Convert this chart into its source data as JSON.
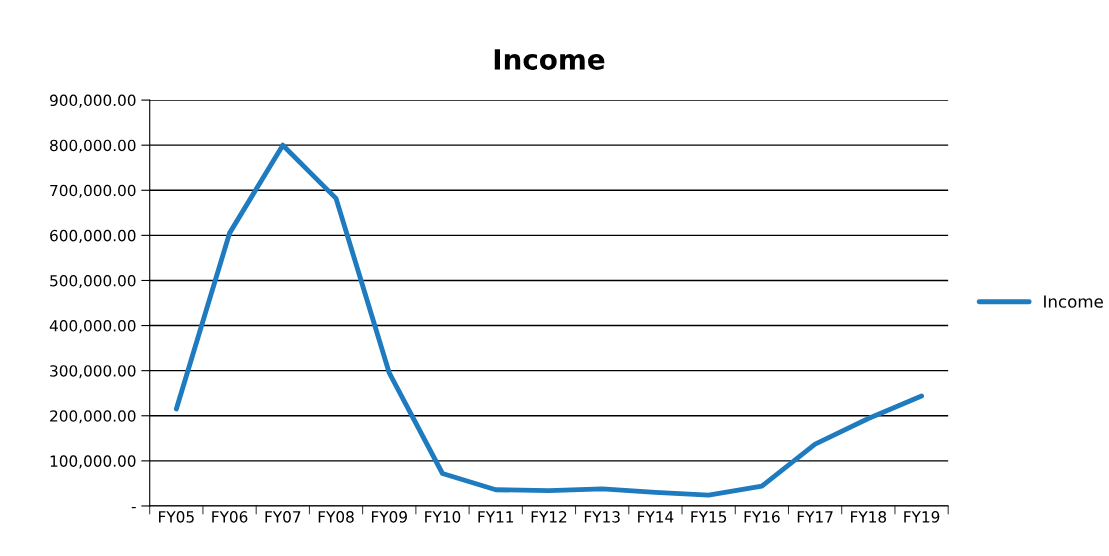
{
  "chart_data": {
    "type": "line",
    "title": "Income",
    "categories": [
      "FY05",
      "FY06",
      "FY07",
      "FY08",
      "FY09",
      "FY10",
      "FY11",
      "FY12",
      "FY13",
      "FY14",
      "FY15",
      "FY16",
      "FY17",
      "FY18",
      "FY19"
    ],
    "series": [
      {
        "name": "Income",
        "color": "#1f7bbf",
        "values": [
          215000,
          605000,
          800000,
          682000,
          295000,
          72000,
          36000,
          34000,
          38000,
          30000,
          24000,
          44000,
          137000,
          194000,
          244000
        ]
      }
    ],
    "ylim": [
      0,
      900000
    ],
    "yticks": [
      {
        "value": 0,
        "label": "-"
      },
      {
        "value": 100000,
        "label": "100,000.00"
      },
      {
        "value": 200000,
        "label": "200,000.00"
      },
      {
        "value": 300000,
        "label": "300,000.00"
      },
      {
        "value": 400000,
        "label": "400,000.00"
      },
      {
        "value": 500000,
        "label": "500,000.00"
      },
      {
        "value": 600000,
        "label": "600,000.00"
      },
      {
        "value": 700000,
        "label": "700,000.00"
      },
      {
        "value": 800000,
        "label": "800,000.00"
      },
      {
        "value": 900000,
        "label": "900,000.00"
      }
    ],
    "grid": "y",
    "legend": "right",
    "marker": "none",
    "line_style": "solid"
  }
}
